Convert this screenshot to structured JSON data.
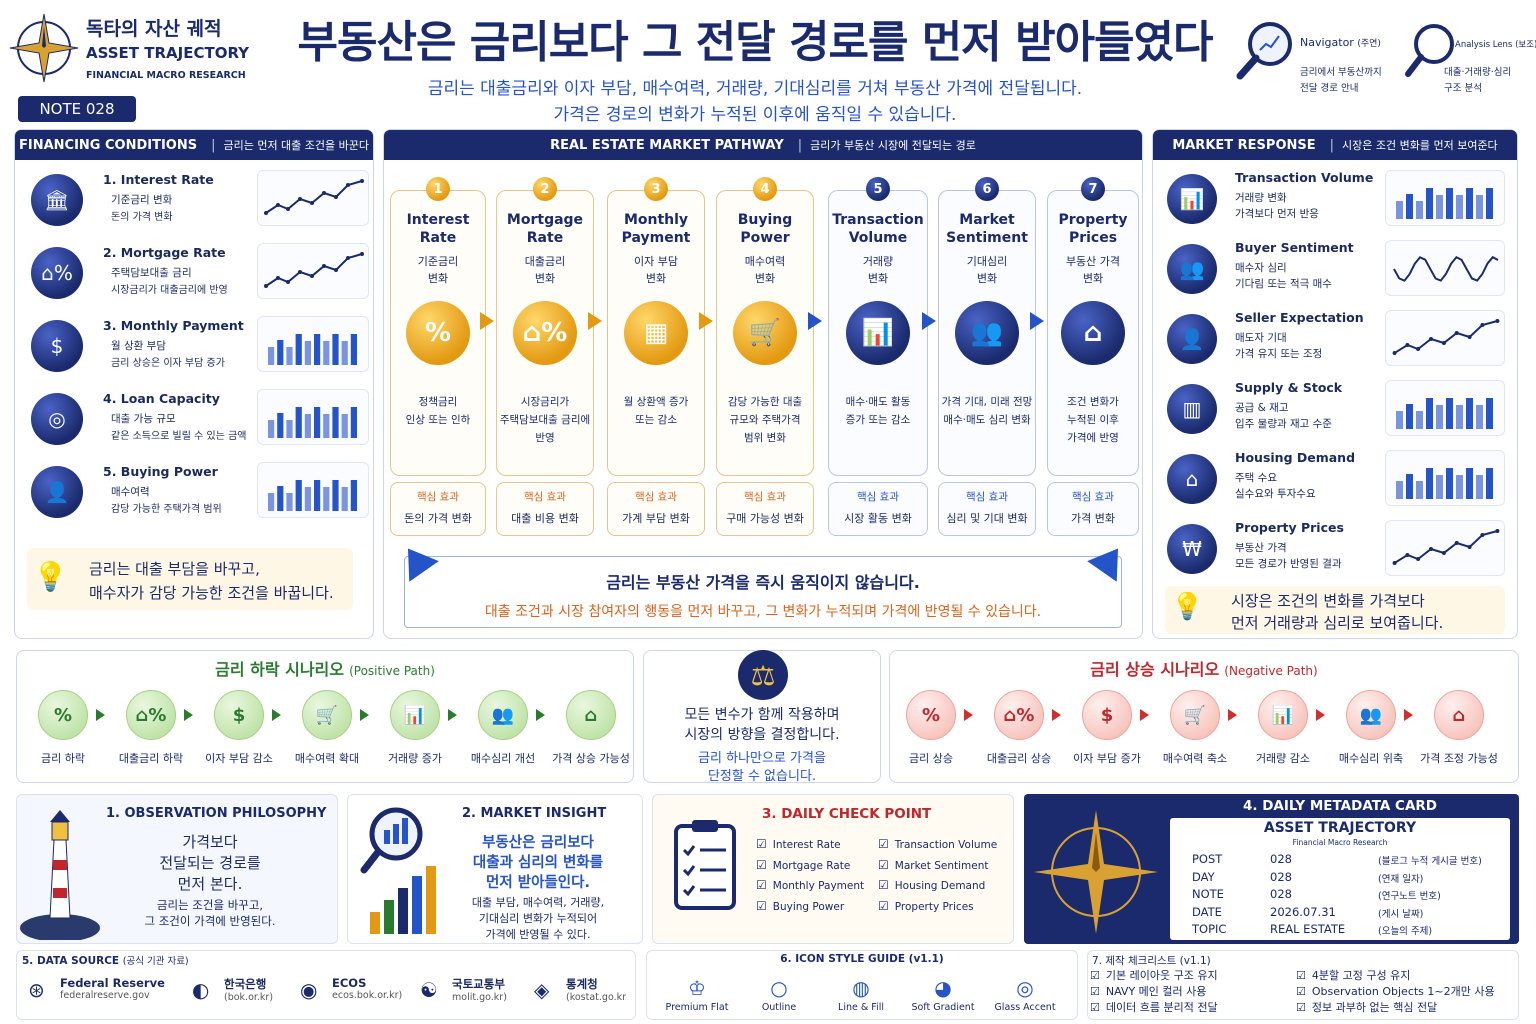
{
  "brand": {
    "kr_title": "독타의 자산 궤적",
    "en_title": "ASSET TRAJECTORY",
    "subtitle": "FINANCIAL MACRO RESEARCH",
    "note_badge": "NOTE 028"
  },
  "header": {
    "title": "부동산은 금리보다 그 전달 경로를 먼저 받아들였다",
    "sub1": "금리는 대출금리와 이자 부담, 매수여력, 거래량, 기대심리를 거쳐 부동산 가격에 전달됩니다.",
    "sub2": "가격은 경로의 변화가 누적된 이후에 움직일 수 있습니다."
  },
  "lenses": [
    {
      "title": "Navigator",
      "title_kr": "(주연)",
      "line1": "금리에서 부동산까지",
      "line2": "전달 경로 안내"
    },
    {
      "title": "Analysis Lens",
      "title_kr": "(보조)",
      "line1": "대출·거래량·심리",
      "line2": "구조 분석"
    }
  ],
  "financing": {
    "head": "FINANCING CONDITIONS",
    "head_sub": "금리는 먼저 대출 조건을 바꾼다",
    "items": [
      {
        "title": "1. Interest Rate",
        "l1": "기준금리 변화",
        "l2": "돈의 가격 변화",
        "icon": "bank-icon",
        "chart": "line"
      },
      {
        "title": "2. Mortgage Rate",
        "l1": "주택담보대출 금리",
        "l2": "시장금리가 대출금리에 반영",
        "icon": "house-percent-icon",
        "chart": "line"
      },
      {
        "title": "3. Monthly Payment",
        "l1": "월 상환 부담",
        "l2": "금리 상승은 이자 부담 증가",
        "icon": "calendar-dollar-icon",
        "chart": "bar"
      },
      {
        "title": "4. Loan Capacity",
        "l1": "대출 가능 규모",
        "l2": "같은 소득으로 빌릴 수 있는 금액",
        "icon": "coins-icon",
        "chart": "bar"
      },
      {
        "title": "5. Buying Power",
        "l1": "매수여력",
        "l2": "감당 가능한 주택가격 범위",
        "icon": "person-icon",
        "chart": "bar"
      }
    ],
    "tip_l1": "금리는 대출 부담을 바꾸고,",
    "tip_l2": "매수자가 감당 가능한 조건을 바꿉니다."
  },
  "pathway": {
    "head": "REAL ESTATE MARKET PATHWAY",
    "head_sub": "금리가 부동산 시장에 전달되는 경로",
    "steps": [
      {
        "n": "1",
        "t1": "Interest",
        "t2": "Rate",
        "s1": "기준금리",
        "s2": "변화",
        "d1": "정책금리",
        "d2": "인상 또는 인하",
        "d3": "",
        "icon": "percent-icon",
        "eff": "돈의 가격 변화"
      },
      {
        "n": "2",
        "t1": "Mortgage",
        "t2": "Rate",
        "s1": "대출금리",
        "s2": "변화",
        "d1": "시장금리가",
        "d2": "주택담보대출 금리에",
        "d3": "반영",
        "icon": "house-percent-icon",
        "eff": "대출 비용 변화"
      },
      {
        "n": "3",
        "t1": "Monthly",
        "t2": "Payment",
        "s1": "이자 부담",
        "s2": "변화",
        "d1": "월 상환액 증가",
        "d2": "또는 감소",
        "d3": "",
        "icon": "calculator-icon",
        "eff": "가계 부담 변화"
      },
      {
        "n": "4",
        "t1": "Buying",
        "t2": "Power",
        "s1": "매수여력",
        "s2": "변화",
        "d1": "감당 가능한 대출",
        "d2": "규모와 주택가격",
        "d3": "범위 변화",
        "icon": "cart-icon",
        "eff": "구매 가능성 변화"
      },
      {
        "n": "5",
        "t1": "Transaction",
        "t2": "Volume",
        "s1": "거래량",
        "s2": "변화",
        "d1": "매수·매도 활동",
        "d2": "증가 또는 감소",
        "d3": "",
        "icon": "bar-chart-icon",
        "eff": "시장 활동 변화"
      },
      {
        "n": "6",
        "t1": "Market",
        "t2": "Sentiment",
        "s1": "기대심리",
        "s2": "변화",
        "d1": "가격 기대, 미래 전망",
        "d2": "매수·매도 심리 변화",
        "d3": "",
        "icon": "people-icon",
        "eff": "심리 및 기대 변화"
      },
      {
        "n": "7",
        "t1": "Property",
        "t2": "Prices",
        "s1": "부동산 가격",
        "s2": "변화",
        "d1": "조건 변화가",
        "d2": "누적된 이후",
        "d3": "가격에 반영",
        "icon": "home-icon",
        "eff": "가격 변화"
      }
    ],
    "eff_label": "핵심 효과",
    "banner_l1": "금리는 부동산 가격을 즉시 움직이지 않습니다.",
    "banner_l2": "대출 조건과 시장 참여자의 행동을 먼저 바꾸고, 그 변화가 누적되며 가격에 반영될 수 있습니다."
  },
  "response": {
    "head": "MARKET RESPONSE",
    "head_sub": "시장은 조건 변화를 먼저 보여준다",
    "items": [
      {
        "title": "Transaction Volume",
        "l1": "거래량 변화",
        "l2": "가격보다 먼저 반응",
        "icon": "bar-chart-icon",
        "chart": "bar"
      },
      {
        "title": "Buyer Sentiment",
        "l1": "매수자 심리",
        "l2": "기다림 또는 적극 매수",
        "icon": "people-icon",
        "chart": "wave"
      },
      {
        "title": "Seller Expectation",
        "l1": "매도자 기대",
        "l2": "가격 유지 또는 조정",
        "icon": "seller-icon",
        "chart": "line"
      },
      {
        "title": "Supply & Stock",
        "l1": "공급 & 재고",
        "l2": "입주 물량과 재고 수준",
        "icon": "building-icon",
        "chart": "bar"
      },
      {
        "title": "Housing Demand",
        "l1": "주택 수요",
        "l2": "실수요와 투자수요",
        "icon": "home-icon",
        "chart": "bar"
      },
      {
        "title": "Property Prices",
        "l1": "부동산 가격",
        "l2": "모든 경로가 반영된 결과",
        "icon": "home-won-icon",
        "chart": "line"
      }
    ],
    "tip_l1": "시장은 조건의 변화를 가격보다",
    "tip_l2": "먼저 거래량과 심리로 보여줍니다."
  },
  "scen_down": {
    "title": "금리 하락 시나리오",
    "tag": "(Positive Path)",
    "items": [
      "금리 하락",
      "대출금리 하락",
      "이자 부담 감소",
      "매수여력 확대",
      "거래량 증가",
      "매수심리 개선",
      "가격 상승 가능성"
    ]
  },
  "scen_mid": {
    "l1": "모든 변수가 함께 작용하며",
    "l2": "시장의 방향을 결정합니다.",
    "l3": "금리 하나만으로 가격을",
    "l4": "단정할 수 없습니다."
  },
  "scen_up": {
    "title": "금리 상승 시나리오",
    "tag": "(Negative Path)",
    "items": [
      "금리 상승",
      "대출금리 상승",
      "이자 부담 증가",
      "매수여력 축소",
      "거래량 감소",
      "매수심리 위축",
      "가격 조정 가능성"
    ]
  },
  "obs": {
    "title": "1. OBSERVATION PHILOSOPHY",
    "l1": "가격보다",
    "l2": "전달되는 경로를",
    "l3": "먼저 본다.",
    "l4": "금리는 조건을 바꾸고,",
    "l5": "그 조건이 가격에 반영된다."
  },
  "insight": {
    "title": "2. MARKET INSIGHT",
    "l1": "부동산은 금리보다",
    "l2": "대출과 심리의 변화를",
    "l3": "먼저 받아들인다.",
    "l4": "대출 부담, 매수여력, 거래량,",
    "l5": "기대심리 변화가 누적되어",
    "l6": "가격에 반영될 수 있다."
  },
  "daily": {
    "title": "3. DAILY CHECK POINT",
    "left": [
      "Interest Rate",
      "Mortgage Rate",
      "Monthly Payment",
      "Buying Power"
    ],
    "right": [
      "Transaction Volume",
      "Market Sentiment",
      "Housing Demand",
      "Property Prices"
    ]
  },
  "meta": {
    "title": "4. DAILY METADATA CARD",
    "card_title": "ASSET TRAJECTORY",
    "card_sub": "Financial Macro Research",
    "rows": [
      {
        "k": "POST",
        "v": "028",
        "n": "(블로그 누적 게시글 번호)"
      },
      {
        "k": "DAY",
        "v": "028",
        "n": "(연재 일자)"
      },
      {
        "k": "NOTE",
        "v": "028",
        "n": "(연구노트 번호)"
      },
      {
        "k": "DATE",
        "v": "2026.07.31",
        "n": "(게시 날짜)"
      },
      {
        "k": "TOPIC",
        "v": "REAL ESTATE",
        "n": "(오늘의 주제)"
      }
    ]
  },
  "source": {
    "title": "5. DATA SOURCE",
    "title_kr": "(공식 기관 자료)",
    "items": [
      {
        "name": "Federal Reserve",
        "url": "federalreserve.gov"
      },
      {
        "name": "한국은행",
        "url": "(bok.or.kr)"
      },
      {
        "name": "ECOS",
        "url": "ecos.bok.or.kr)"
      },
      {
        "name": "국토교통부",
        "url": "molit.go.kr)"
      },
      {
        "name": "통계청",
        "url": "(kostat.go.kr"
      }
    ]
  },
  "style": {
    "title": "6. ICON STYLE GUIDE",
    "ver": "(v1.1)",
    "items": [
      "Premium Flat",
      "Outline",
      "Line & Fill",
      "Soft Gradient",
      "Glass Accent"
    ]
  },
  "checklist": {
    "title": "7. 제작 체크리스트",
    "ver": "(v1.1)",
    "left": [
      "기본 레이아웃 구조 유지",
      "NAVY 메인 컬러 사용",
      "데이터 흐름 분리적 전달"
    ],
    "right": [
      "4분할 고정 구성 유지",
      "Observation Objects 1~2개만 사용",
      "정보 과부하 없는 핵심 전달"
    ]
  },
  "colors": {
    "navy": "#1a2a6c",
    "gold": "#e39a12",
    "blue": "#2553c8",
    "red": "#c0262b",
    "green": "#2a7a30"
  }
}
